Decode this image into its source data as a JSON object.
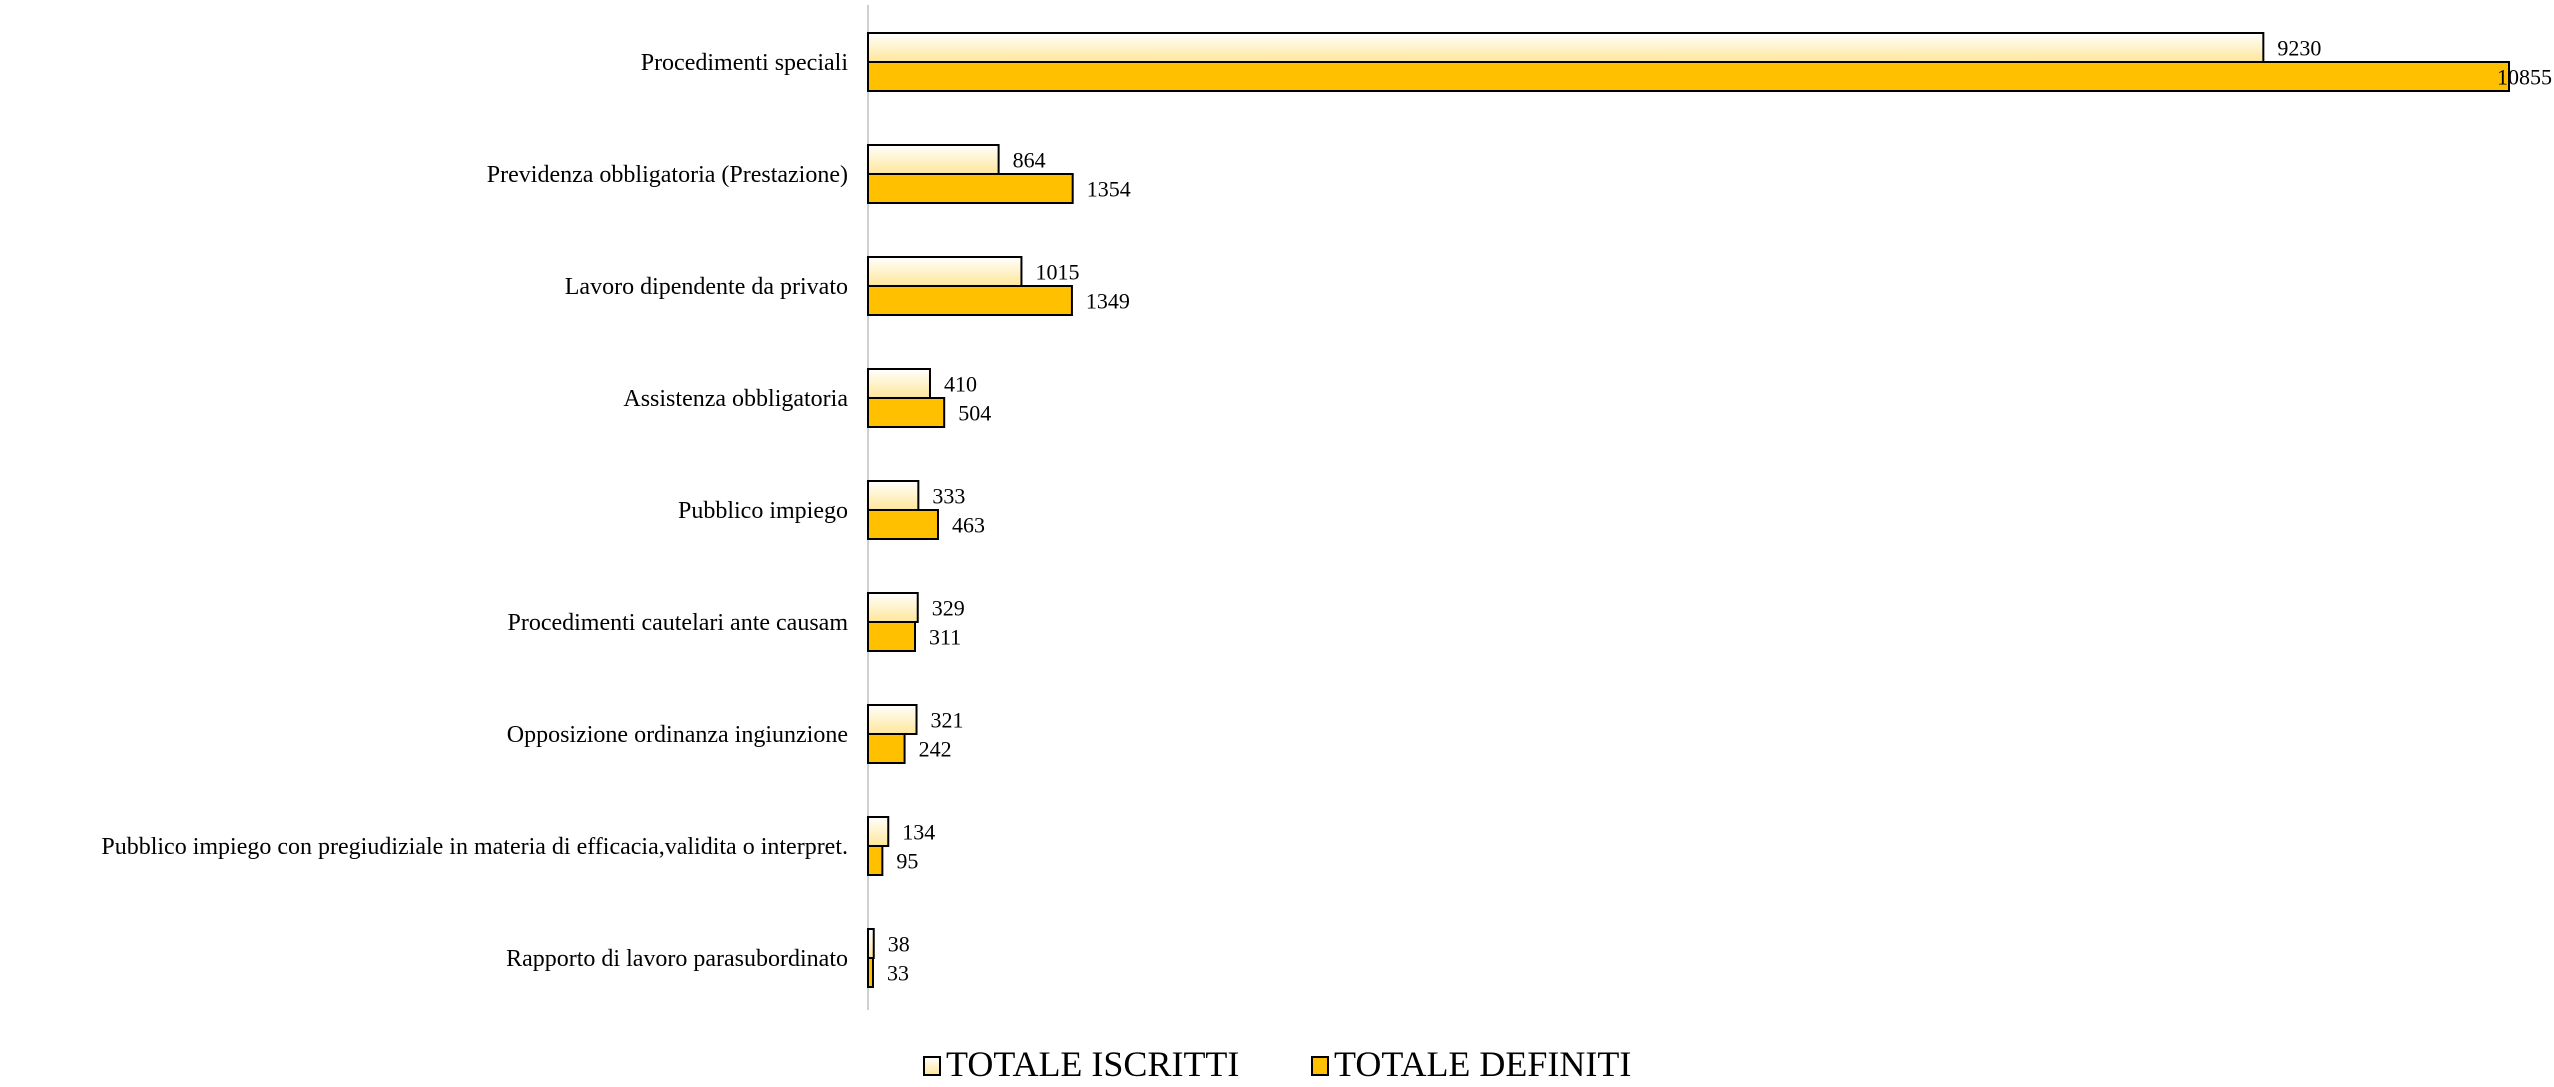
{
  "chart_data": {
    "type": "bar",
    "orientation": "horizontal",
    "categories": [
      "Procedimenti speciali",
      "Previdenza obbligatoria (Prestazione)",
      "Lavoro dipendente da privato",
      "Assistenza obbligatoria",
      "Pubblico impiego",
      "Procedimenti cautelari ante causam",
      "Opposizione ordinanza ingiunzione",
      "Pubblico impiego con pregiudiziale in materia di efficacia,validita o interpret.",
      "Rapporto di lavoro parasubordinato"
    ],
    "series": [
      {
        "name": "TOTALE ISCRITTI",
        "values": [
          9230,
          864,
          1015,
          410,
          333,
          329,
          321,
          134,
          38
        ],
        "color": "#FFF2CC"
      },
      {
        "name": "TOTALE DEFINITI",
        "values": [
          10855,
          1354,
          1349,
          504,
          463,
          311,
          242,
          95,
          33
        ],
        "color": "#FFC000"
      }
    ],
    "title": "",
    "xlabel": "",
    "ylabel": "",
    "xlim": [
      0,
      10855
    ],
    "grid": false,
    "legend_position": "bottom",
    "data_labels": true
  }
}
